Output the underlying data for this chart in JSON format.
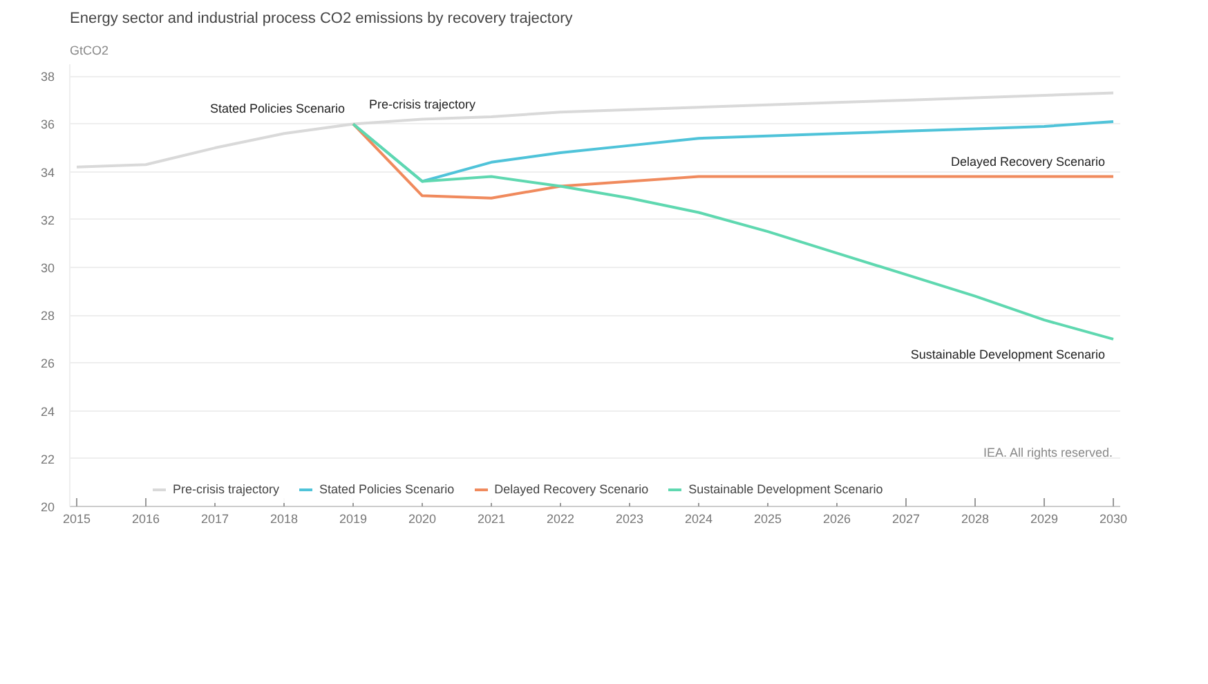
{
  "chart_data": {
    "type": "line",
    "title": "Energy sector and industrial process CO2 emissions by recovery trajectory",
    "ylabel": "GtCO2",
    "x": [
      2015,
      2016,
      2017,
      2018,
      2019,
      2020,
      2021,
      2022,
      2023,
      2024,
      2025,
      2026,
      2027,
      2028,
      2029,
      2030
    ],
    "series": [
      {
        "name": "Pre-crisis trajectory",
        "color": "#d9d9d9",
        "values": [
          34.2,
          34.3,
          35.0,
          35.6,
          36.0,
          36.2,
          36.3,
          36.5,
          36.6,
          36.7,
          36.8,
          36.9,
          37.0,
          37.1,
          37.2,
          37.3
        ]
      },
      {
        "name": "Stated Policies Scenario",
        "color": "#4fc3d9",
        "x": [
          2019,
          2020,
          2021,
          2022,
          2023,
          2024,
          2025,
          2026,
          2027,
          2028,
          2029,
          2030
        ],
        "values": [
          36.0,
          33.6,
          34.4,
          34.8,
          35.1,
          35.4,
          35.5,
          35.6,
          35.7,
          35.8,
          35.9,
          36.1
        ]
      },
      {
        "name": "Delayed Recovery Scenario",
        "color": "#f08a5d",
        "x": [
          2019,
          2020,
          2021,
          2022,
          2023,
          2024,
          2025,
          2026,
          2027,
          2028,
          2029,
          2030
        ],
        "values": [
          36.0,
          33.0,
          32.9,
          33.4,
          33.6,
          33.8,
          33.8,
          33.8,
          33.8,
          33.8,
          33.8,
          33.8
        ]
      },
      {
        "name": "Sustainable Development Scenario",
        "color": "#5fd8b0",
        "x": [
          2019,
          2020,
          2021,
          2022,
          2023,
          2024,
          2025,
          2026,
          2027,
          2028,
          2029,
          2030
        ],
        "values": [
          36.0,
          33.6,
          33.8,
          33.4,
          32.9,
          32.3,
          31.5,
          30.6,
          29.7,
          28.8,
          27.8,
          27.0
        ]
      }
    ],
    "xlim": [
      2014.9,
      2030.1
    ],
    "xticks": [
      2015,
      2016,
      2017,
      2018,
      2019,
      2020,
      2021,
      2022,
      2023,
      2024,
      2025,
      2026,
      2027,
      2028,
      2029,
      2030
    ],
    "ylim": [
      20,
      38.5
    ],
    "yticks": [
      20,
      22,
      24,
      26,
      28,
      30,
      32,
      34,
      36,
      38
    ],
    "grid": "y",
    "legend": "bottom",
    "line_style": "solid",
    "annotations": [
      {
        "text": "Pre-crisis trajectory",
        "x": 2020,
        "y": 36.2
      },
      {
        "text": "Stated Policies Scenario",
        "x": 2019,
        "y": 36.0
      },
      {
        "text": "Delayed Recovery Scenario",
        "x": 2030,
        "y": 33.8
      },
      {
        "text": "Sustainable Development Scenario",
        "x": 2030,
        "y": 27.0
      },
      "IEA. All rights reserved."
    ]
  }
}
